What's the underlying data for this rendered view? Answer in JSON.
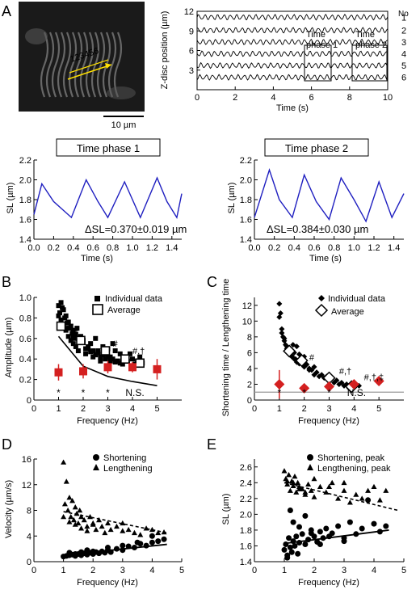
{
  "panel_letters": [
    "A",
    "B",
    "C",
    "D",
    "E"
  ],
  "micrograph": {
    "scale_bar_label": "10 µm",
    "marker_numbers": "123456"
  },
  "colors": {
    "trace": "#1f1fc0",
    "average_marker": "#ffffff",
    "significance": "#d42020",
    "reference_line": "#999999",
    "markers": "#000000",
    "micrograph_bg": "#1a1a1a"
  },
  "chart_data": [
    {
      "id": "A-zdisc",
      "type": "line",
      "ylabel": "Z-disc position (µm)",
      "xlabel": "Time (s)",
      "xlim": [
        0,
        10
      ],
      "ylim": [
        0,
        12
      ],
      "xticks": [
        0,
        2,
        4,
        6,
        8,
        10
      ],
      "yticks": [
        3,
        6,
        9,
        12
      ],
      "legend_title": "No",
      "series": [
        {
          "name": "1",
          "baseline": 11.1
        },
        {
          "name": "2",
          "baseline": 9.1
        },
        {
          "name": "3",
          "baseline": 7.3
        },
        {
          "name": "4",
          "baseline": 5.5
        },
        {
          "name": "5",
          "baseline": 3.7
        },
        {
          "name": "6",
          "baseline": 1.9
        }
      ],
      "annotations": [
        {
          "text_line1": "Time",
          "text_line2": "phase 1",
          "x_range": [
            5.3,
            6.7
          ],
          "y_range": [
            0.8,
            6.6
          ]
        },
        {
          "text_line1": "Time",
          "text_line2": "phase 2",
          "x_range": [
            7.6,
            9.0
          ],
          "y_range": [
            0.8,
            6.6
          ]
        }
      ]
    },
    {
      "id": "A-phase1",
      "type": "line",
      "title": "Time phase 1",
      "xlabel": "Time (s)",
      "ylabel": "SL (µm)",
      "xlim": [
        0,
        1.5
      ],
      "ylim": [
        1.4,
        2.2
      ],
      "xticks": [
        "0.0",
        "0.2",
        "0.4",
        "0.6",
        "0.8",
        "1.0",
        "1.2",
        "1.4"
      ],
      "yticks": [
        "1.4",
        "1.6",
        "1.8",
        "2.0",
        "2.2"
      ],
      "annotation": "ΔSL=0.370±0.019 µm",
      "peaks": [
        0.08,
        0.53,
        0.92,
        1.25
      ],
      "troughs": [
        0.38,
        0.75,
        1.08,
        1.45
      ],
      "x": [
        0.0,
        0.08,
        0.2,
        0.38,
        0.53,
        0.65,
        0.75,
        0.92,
        1.0,
        1.08,
        1.25,
        1.35,
        1.45,
        1.5
      ],
      "values": [
        1.65,
        1.96,
        1.78,
        1.62,
        2.0,
        1.78,
        1.62,
        1.98,
        1.8,
        1.62,
        2.02,
        1.78,
        1.62,
        1.86
      ]
    },
    {
      "id": "A-phase2",
      "type": "line",
      "title": "Time phase 2",
      "xlabel": "Time (s)",
      "ylabel": "SL (µm)",
      "xlim": [
        0,
        1.5
      ],
      "ylim": [
        1.4,
        2.2
      ],
      "xticks": [
        "0.0",
        "0.2",
        "0.4",
        "0.6",
        "0.8",
        "1.0",
        "1.2",
        "1.4"
      ],
      "yticks": [
        "1.4",
        "1.6",
        "1.8",
        "2.0",
        "2.2"
      ],
      "annotation": "ΔSL=0.384±0.030 µm",
      "x": [
        0.0,
        0.15,
        0.25,
        0.38,
        0.5,
        0.62,
        0.75,
        0.87,
        1.0,
        1.12,
        1.25,
        1.38,
        1.5
      ],
      "values": [
        1.62,
        2.1,
        1.8,
        1.62,
        2.05,
        1.78,
        1.6,
        2.02,
        1.8,
        1.58,
        1.98,
        1.62,
        1.86
      ]
    },
    {
      "id": "B",
      "type": "scatter",
      "xlabel": "Frequency (Hz)",
      "ylabel": "Amplitude (µm)",
      "xlim": [
        0,
        6
      ],
      "ylim": [
        0,
        1.0
      ],
      "xticks": [
        0,
        1,
        2,
        3,
        4,
        5
      ],
      "yticks": [
        "0",
        "0.2",
        "0.4",
        "0.6",
        "0.8",
        "1.0"
      ],
      "legend": [
        "Individual data",
        "Average"
      ],
      "individual_x": [
        1.0,
        1.05,
        1.1,
        1.15,
        1.2,
        1.25,
        1.3,
        1.35,
        1.4,
        1.45,
        1.5,
        1.55,
        1.6,
        1.65,
        1.7,
        1.75,
        1.8,
        1.9,
        2.0,
        2.1,
        2.2,
        2.3,
        2.4,
        2.5,
        2.6,
        2.7,
        2.8,
        2.9,
        3.0,
        3.1,
        3.2,
        3.3,
        3.4,
        3.5,
        3.6,
        3.7,
        3.8,
        3.9,
        4.0,
        4.1,
        4.2,
        4.3,
        4.4,
        1.1,
        1.2,
        1.3,
        1.4,
        1.5,
        1.6,
        1.7,
        1.8,
        2.0,
        2.2,
        2.4,
        2.6,
        2.8,
        3.0,
        3.2,
        3.4,
        1.0,
        1.3,
        1.6,
        1.9,
        2.1,
        2.3,
        2.5,
        2.7,
        2.9,
        3.1,
        3.3,
        3.5
      ],
      "individual_y": [
        0.92,
        0.85,
        0.78,
        0.9,
        0.72,
        0.8,
        0.68,
        0.75,
        0.62,
        0.7,
        0.58,
        0.65,
        0.55,
        0.6,
        0.52,
        0.7,
        0.48,
        0.62,
        0.58,
        0.45,
        0.5,
        0.55,
        0.42,
        0.6,
        0.48,
        0.38,
        0.52,
        0.45,
        0.5,
        0.42,
        0.55,
        0.48,
        0.38,
        0.45,
        0.35,
        0.42,
        0.38,
        0.45,
        0.4,
        0.35,
        0.38,
        0.42,
        0.36,
        0.95,
        0.88,
        0.82,
        0.76,
        0.72,
        0.68,
        0.64,
        0.6,
        0.56,
        0.52,
        0.48,
        0.46,
        0.44,
        0.42,
        0.4,
        0.38,
        0.82,
        0.7,
        0.62,
        0.56,
        0.5,
        0.47,
        0.44,
        0.42,
        0.4,
        0.38,
        0.37,
        0.36
      ],
      "average_x": [
        1.1,
        1.9,
        2.9,
        3.7,
        4.3
      ],
      "average_y": [
        0.72,
        0.58,
        0.48,
        0.4,
        0.36
      ],
      "significance_x": [
        1,
        2,
        3,
        4,
        5
      ],
      "significance_y": [
        0.27,
        0.28,
        0.32,
        0.32,
        0.3
      ],
      "significance_err": [
        0.08,
        0.07,
        0.06,
        0.05,
        0.1
      ],
      "fit_curve": [
        [
          1,
          0.62
        ],
        [
          2,
          0.33
        ],
        [
          3,
          0.23
        ],
        [
          4,
          0.18
        ],
        [
          5,
          0.14
        ]
      ],
      "star_labels": [
        "*",
        "*",
        "*",
        "N.S."
      ],
      "star_x": [
        1,
        2,
        3,
        4.1
      ],
      "mark_labels": [
        "#",
        "#",
        "#,†"
      ],
      "mark_x": [
        1.6,
        3.2,
        4.0
      ],
      "mark_y": [
        0.65,
        0.52,
        0.45
      ]
    },
    {
      "id": "C",
      "type": "scatter",
      "xlabel": "Frequency (Hz)",
      "ylabel": "Shortening time / Lengthening time",
      "xlim": [
        0,
        6
      ],
      "ylim": [
        0,
        13
      ],
      "xticks": [
        0,
        1,
        2,
        3,
        4,
        5
      ],
      "yticks": [
        0,
        2,
        4,
        6,
        8,
        10,
        12
      ],
      "legend": [
        "Individual data",
        "Average"
      ],
      "individual_x": [
        1.0,
        1.05,
        1.1,
        1.15,
        1.2,
        1.25,
        1.3,
        1.35,
        1.4,
        1.45,
        1.5,
        1.55,
        1.6,
        1.65,
        1.7,
        1.75,
        1.8,
        1.9,
        2.0,
        2.1,
        2.2,
        2.3,
        2.4,
        2.5,
        2.6,
        2.7,
        2.8,
        2.9,
        3.0,
        3.1,
        3.2,
        3.3,
        3.4,
        3.5,
        3.6,
        3.7,
        3.8,
        3.9,
        4.0,
        4.1,
        4.2,
        1.0,
        1.1,
        1.2,
        1.3,
        1.4,
        1.5,
        1.6,
        1.7,
        1.8,
        2.0,
        2.2,
        2.4
      ],
      "individual_y": [
        12.2,
        11.0,
        9.0,
        8.0,
        7.5,
        7.0,
        6.8,
        6.2,
        5.8,
        6.5,
        5.5,
        7.0,
        6.0,
        5.2,
        6.8,
        5.0,
        5.8,
        4.8,
        5.5,
        4.5,
        4.0,
        3.8,
        4.2,
        3.5,
        3.0,
        3.2,
        2.8,
        3.0,
        2.5,
        2.8,
        2.2,
        2.5,
        2.0,
        2.2,
        1.8,
        2.0,
        1.5,
        1.8,
        1.6,
        1.9,
        1.8,
        10.5,
        8.5,
        7.8,
        6.5,
        6.0,
        5.6,
        5.2,
        4.8,
        4.6,
        4.2,
        3.8,
        3.2
      ],
      "average_x": [
        1.4,
        1.9,
        3.0,
        3.9
      ],
      "average_y": [
        6.2,
        5.0,
        2.8,
        1.7
      ],
      "significance_x": [
        1,
        2,
        3,
        4,
        5
      ],
      "significance_y": [
        2.0,
        1.5,
        1.7,
        2.0,
        2.4
      ],
      "significance_err": [
        1.8,
        0.2,
        0.3,
        0.2,
        0.2
      ],
      "reference_y": 1.0,
      "star_labels": [
        "*",
        "*",
        "*",
        "N.S."
      ],
      "star_x": [
        1,
        2,
        3,
        4.1
      ],
      "mark_labels": [
        "#",
        "#,†",
        "#,†,‡"
      ],
      "mark_x": [
        2.2,
        3.4,
        4.4
      ],
      "mark_y": [
        5.0,
        3.3,
        2.5
      ]
    },
    {
      "id": "D",
      "type": "scatter",
      "xlabel": "Frequency (Hz)",
      "ylabel": "Velocity (µm/s)",
      "xlim": [
        0,
        5
      ],
      "ylim": [
        0,
        16
      ],
      "xticks": [
        0,
        1,
        2,
        3,
        4,
        5
      ],
      "yticks": [
        0,
        4,
        8,
        12,
        16
      ],
      "legend": [
        "Shortening",
        "Lengthening"
      ],
      "shortening_x": [
        1.0,
        1.1,
        1.2,
        1.3,
        1.4,
        1.5,
        1.6,
        1.7,
        1.8,
        1.9,
        2.0,
        2.1,
        2.2,
        2.3,
        2.4,
        2.5,
        2.6,
        2.8,
        3.0,
        3.2,
        3.4,
        3.6,
        3.8,
        4.0,
        4.2,
        4.4,
        1.2,
        1.4,
        1.6,
        1.8,
        2.0,
        2.5,
        3.0,
        3.5,
        4.0
      ],
      "shortening_y": [
        0.8,
        0.9,
        1.0,
        1.1,
        0.9,
        1.2,
        1.0,
        1.3,
        1.1,
        1.4,
        1.2,
        1.5,
        1.3,
        1.6,
        1.4,
        1.8,
        1.5,
        2.0,
        1.8,
        2.4,
        2.2,
        2.8,
        2.5,
        3.0,
        3.2,
        3.5,
        1.4,
        1.2,
        1.5,
        1.8,
        1.6,
        2.2,
        2.5,
        3.0,
        4.0
      ],
      "lengthening_x": [
        1.0,
        1.05,
        1.1,
        1.15,
        1.2,
        1.25,
        1.3,
        1.35,
        1.4,
        1.45,
        1.5,
        1.55,
        1.6,
        1.7,
        1.8,
        1.9,
        2.0,
        2.1,
        2.2,
        2.3,
        2.4,
        2.5,
        2.6,
        2.8,
        3.0,
        3.2,
        3.4,
        3.6,
        3.8,
        4.0,
        4.2,
        4.4,
        1.0,
        1.2,
        1.4,
        1.6,
        1.8,
        2.0,
        3.0
      ],
      "lengthening_y": [
        15.5,
        9.0,
        12.5,
        8.0,
        10.0,
        7.0,
        9.5,
        6.5,
        8.5,
        7.5,
        6.0,
        8.0,
        7.0,
        6.5,
        5.5,
        7.0,
        6.0,
        5.0,
        6.5,
        5.5,
        4.5,
        6.0,
        5.0,
        5.5,
        4.8,
        5.0,
        4.5,
        4.2,
        5.2,
        5.0,
        4.5,
        4.6,
        7.0,
        6.2,
        5.8,
        5.2,
        4.8,
        5.8,
        6.0
      ],
      "shortening_fit": [
        [
          1,
          1.0
        ],
        [
          4.5,
          2.7
        ]
      ],
      "lengthening_fit": [
        [
          1,
          7.8
        ],
        [
          4.5,
          4.5
        ]
      ]
    },
    {
      "id": "E",
      "type": "scatter",
      "xlabel": "Frequency (Hz)",
      "ylabel": "SL (µm)",
      "xlim": [
        0,
        5
      ],
      "ylim": [
        1.4,
        2.7
      ],
      "xticks": [
        0,
        1,
        2,
        3,
        4,
        5
      ],
      "yticks": [
        "1.4",
        "1.6",
        "1.8",
        "2.0",
        "2.2",
        "2.4",
        "2.6"
      ],
      "legend": [
        "Shortening, peak",
        "Lengthening, peak"
      ],
      "shortening_x": [
        1.0,
        1.05,
        1.1,
        1.15,
        1.2,
        1.25,
        1.3,
        1.35,
        1.4,
        1.45,
        1.5,
        1.6,
        1.7,
        1.8,
        1.9,
        2.0,
        2.1,
        2.2,
        2.3,
        2.4,
        2.6,
        2.8,
        3.0,
        3.2,
        3.4,
        3.6,
        3.8,
        4.0,
        4.2,
        4.4,
        1.1,
        1.2,
        1.3,
        1.5,
        1.7,
        1.9,
        2.2,
        2.5,
        3.0
      ],
      "shortening_y": [
        1.55,
        1.62,
        1.48,
        1.7,
        1.58,
        1.52,
        1.66,
        1.6,
        1.72,
        1.5,
        1.64,
        1.75,
        1.62,
        1.68,
        1.8,
        1.72,
        1.65,
        1.78,
        1.7,
        1.82,
        1.76,
        1.85,
        1.7,
        1.9,
        1.75,
        1.82,
        2.18,
        1.88,
        1.78,
        1.85,
        1.45,
        2.05,
        1.9,
        1.84,
        1.98,
        1.76,
        1.62,
        1.72,
        1.66
      ],
      "lengthening_x": [
        1.0,
        1.05,
        1.1,
        1.15,
        1.2,
        1.25,
        1.3,
        1.35,
        1.4,
        1.45,
        1.5,
        1.6,
        1.7,
        1.8,
        1.9,
        2.0,
        2.2,
        2.4,
        2.6,
        2.8,
        3.0,
        3.2,
        3.4,
        3.6,
        3.8,
        4.0,
        4.2,
        4.4,
        1.1,
        1.3,
        1.5,
        1.7,
        2.0,
        2.5,
        3.0
      ],
      "lengthening_y": [
        2.55,
        2.45,
        2.38,
        2.5,
        2.3,
        2.42,
        2.36,
        2.48,
        2.28,
        2.4,
        2.35,
        2.32,
        2.25,
        2.38,
        2.3,
        2.22,
        2.35,
        2.28,
        2.4,
        2.2,
        2.3,
        2.15,
        2.25,
        2.2,
        2.3,
        2.35,
        2.18,
        2.3,
        2.42,
        2.4,
        2.32,
        2.28,
        2.45,
        2.35,
        2.4
      ],
      "shortening_fit": [
        [
          1,
          1.63
        ],
        [
          4.5,
          1.8
        ]
      ],
      "lengthening_fit": [
        [
          1,
          2.4
        ],
        [
          4.8,
          2.05
        ]
      ]
    }
  ]
}
